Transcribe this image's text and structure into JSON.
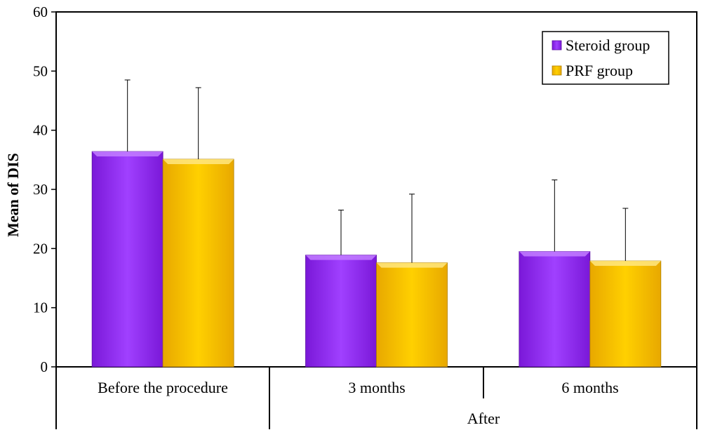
{
  "chart_data": {
    "type": "bar",
    "title": "",
    "xlabel": "",
    "ylabel": "Mean of DIS",
    "ylim": [
      0,
      60
    ],
    "yticks": [
      0,
      10,
      20,
      30,
      40,
      50,
      60
    ],
    "grid": false,
    "legend_position": "top-right",
    "categories": [
      "Before the procedure",
      "3 months",
      "6 months"
    ],
    "category_group": {
      "label": "After",
      "members": [
        "3 months",
        "6 months"
      ]
    },
    "series": [
      {
        "name": "Steroid group",
        "color": "#9b30ff",
        "values": [
          36.4,
          18.9,
          19.5
        ],
        "error_upper": [
          48.5,
          26.5,
          31.6
        ]
      },
      {
        "name": "PRF group",
        "color": "#ffc800",
        "values": [
          35.1,
          17.6,
          17.9
        ],
        "error_upper": [
          47.2,
          29.2,
          26.8
        ]
      }
    ]
  }
}
